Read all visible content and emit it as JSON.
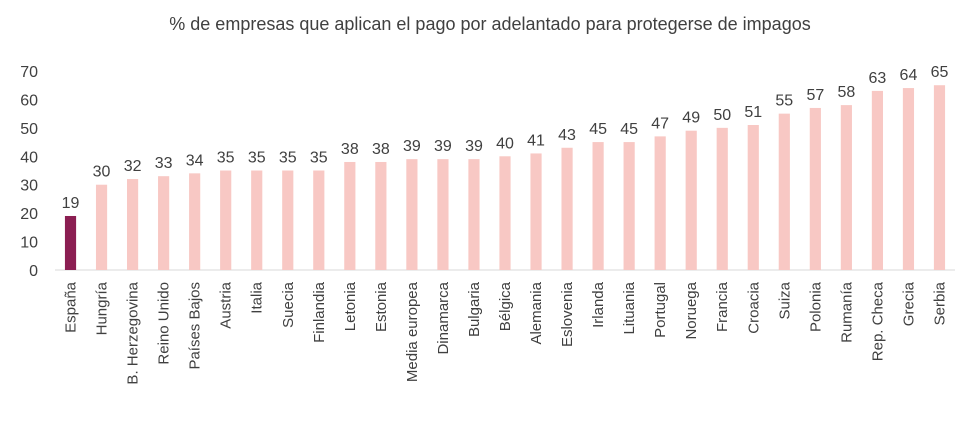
{
  "chart_data": {
    "type": "bar",
    "title": "% de empresas que aplican el pago por  adelantado para protegerse de impagos",
    "xlabel": "",
    "ylabel": "",
    "ylim": [
      0,
      70
    ],
    "yticks": [
      0,
      10,
      20,
      30,
      40,
      50,
      60,
      70
    ],
    "grid": false,
    "legend": "none",
    "categories": [
      "España",
      "Hungría",
      "B. Herzegovina",
      "Reino Unido",
      "Países Bajos",
      "Austria",
      "Italia",
      "Suecia",
      "Finlandia",
      "Letonia",
      "Estonia",
      "Media europea",
      "Dinamarca",
      "Bulgaria",
      "Bélgica",
      "Alemania",
      "Eslovenia",
      "Irlanda",
      "Lituania",
      "Portugal",
      "Noruega",
      "Francia",
      "Croacia",
      "Suiza",
      "Polonia",
      "Rumanía",
      "Rep. Checa",
      "Grecia",
      "Serbia"
    ],
    "values": [
      19,
      30,
      32,
      33,
      34,
      35,
      35,
      35,
      35,
      38,
      38,
      39,
      39,
      39,
      40,
      41,
      43,
      45,
      45,
      47,
      49,
      50,
      51,
      55,
      57,
      58,
      63,
      64,
      65
    ],
    "highlight_index": 0,
    "colors": {
      "highlight": "#8B1E52",
      "bar": "#F8C8C4",
      "axis": "#d9d9d9",
      "text": "#404040"
    }
  }
}
